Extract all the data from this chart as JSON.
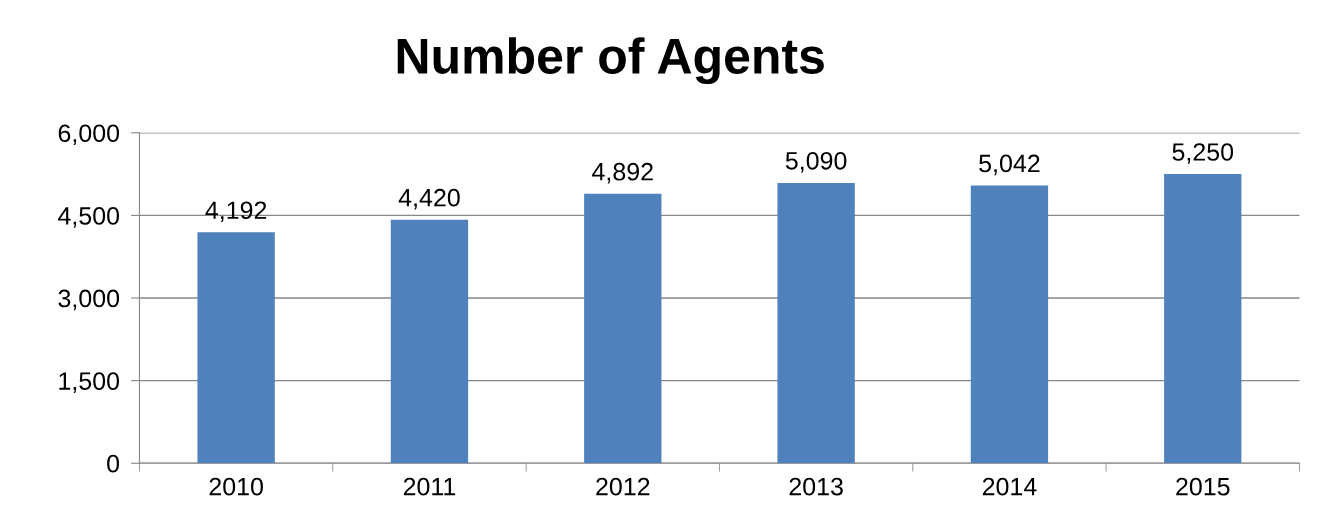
{
  "chart_data": {
    "type": "bar",
    "title": "Number of Agents",
    "categories": [
      "2010",
      "2011",
      "2012",
      "2013",
      "2014",
      "2015"
    ],
    "values": [
      4192,
      4420,
      4892,
      5090,
      5042,
      5250
    ],
    "value_labels": [
      "4,192",
      "4,420",
      "4,892",
      "5,090",
      "5,042",
      "5,250"
    ],
    "color": "#4f81bd",
    "ylim": [
      0,
      6000
    ],
    "yticks": [
      0,
      {
        "value": 1500,
        "label": "1,500"
      },
      {
        "value": 3000,
        "label": "3,000"
      },
      {
        "value": 4500,
        "label": "4,500"
      },
      {
        "value": 6000,
        "label": "6,000"
      }
    ],
    "grid": "y",
    "legend": false
  }
}
